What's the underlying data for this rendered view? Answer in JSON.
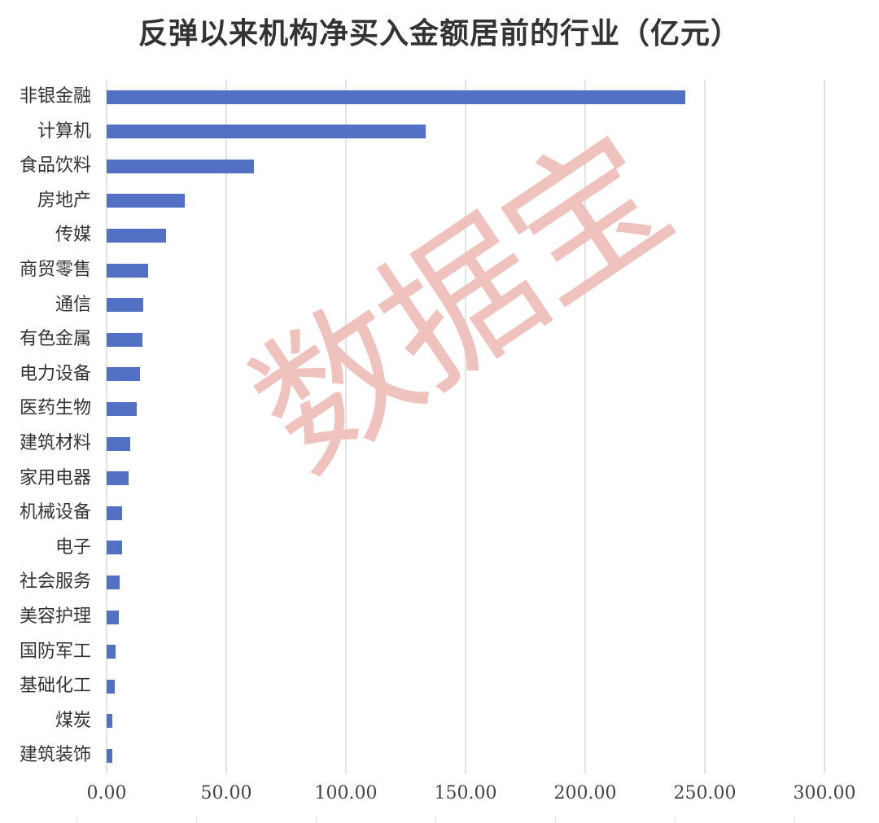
{
  "chart_data": {
    "type": "bar",
    "orientation": "horizontal",
    "title": "反弹以来机构净买入金额居前的行业（亿元）",
    "xlabel": "",
    "ylabel": "",
    "xlim": [
      0,
      300
    ],
    "grid": true,
    "legend": null,
    "x_ticks": [
      "0.00",
      "50.00",
      "100.00",
      "150.00",
      "200.00",
      "250.00",
      "300.00"
    ],
    "categories": [
      "非银金融",
      "计算机",
      "食品饮料",
      "房地产",
      "传媒",
      "商贸零售",
      "通信",
      "有色金属",
      "电力设备",
      "医药生物",
      "建筑材料",
      "家用电器",
      "机械设备",
      "电子",
      "社会服务",
      "美容护理",
      "国防军工",
      "基础化工",
      "煤炭",
      "建筑装饰"
    ],
    "values": [
      242.0,
      133.5,
      61.4,
      32.8,
      24.8,
      17.2,
      15.2,
      14.9,
      14.0,
      12.7,
      9.8,
      9.2,
      6.4,
      6.4,
      5.3,
      5.0,
      3.8,
      3.4,
      2.5,
      2.5
    ],
    "bar_color": "#5271c4",
    "watermark": "数据宝"
  },
  "colors": {
    "bar": "#5271c4",
    "grid": "#e3e3e3",
    "watermark": "#f0bfba",
    "text": "#333333"
  }
}
